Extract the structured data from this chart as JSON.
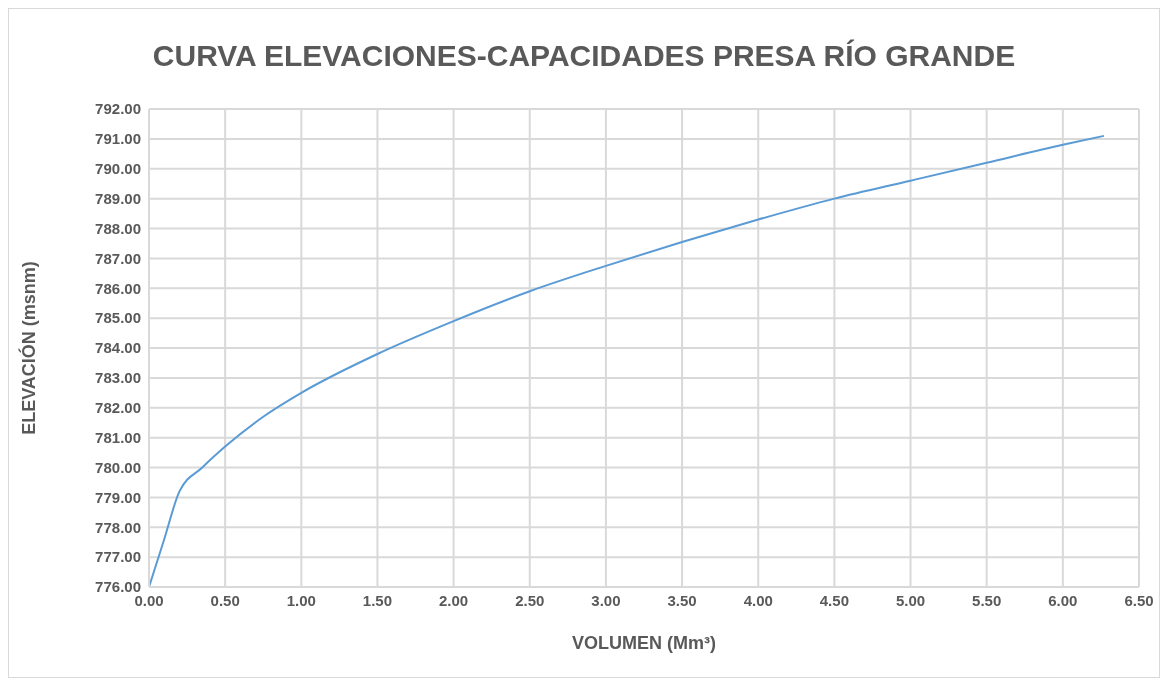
{
  "chart_data": {
    "type": "line",
    "title": "CURVA ELEVACIONES-CAPACIDADES PRESA RÍO GRANDE",
    "xlabel": "VOLUMEN (Mm³)",
    "ylabel": "ELEVACIÓN (msnm)",
    "series": [
      {
        "color": "#5b9bd5",
        "x": [
          0,
          0.1,
          0.2,
          0.35,
          0.5,
          0.75,
          1.0,
          1.5,
          2.0,
          2.5,
          3.0,
          3.5,
          4.0,
          4.5,
          5.0,
          5.5,
          6.0,
          6.27
        ],
        "values": [
          776,
          777.6,
          779.2,
          780.0,
          780.7,
          781.7,
          782.5,
          783.8,
          784.9,
          785.9,
          786.75,
          787.55,
          788.3,
          789.0,
          789.6,
          790.2,
          790.8,
          791.1
        ]
      }
    ],
    "xlim": [
      0,
      6.5
    ],
    "xticks": [
      {
        "value": 0,
        "label": "0.00"
      },
      {
        "value": 0.5,
        "label": "0.50"
      },
      {
        "value": 1,
        "label": "1.00"
      },
      {
        "value": 1.5,
        "label": "1.50"
      },
      {
        "value": 2,
        "label": "2.00"
      },
      {
        "value": 2.5,
        "label": "2.50"
      },
      {
        "value": 3,
        "label": "3.00"
      },
      {
        "value": 3.5,
        "label": "3.50"
      },
      {
        "value": 4,
        "label": "4.00"
      },
      {
        "value": 4.5,
        "label": "4.50"
      },
      {
        "value": 5,
        "label": "5.00"
      },
      {
        "value": 5.5,
        "label": "5.50"
      },
      {
        "value": 6,
        "label": "6.00"
      },
      {
        "value": 6.5,
        "label": "6.50"
      }
    ],
    "ylim": [
      776,
      792
    ],
    "yticks": [
      {
        "value": 776,
        "label": "776.00"
      },
      {
        "value": 777,
        "label": "777.00"
      },
      {
        "value": 778,
        "label": "778.00"
      },
      {
        "value": 779,
        "label": "779.00"
      },
      {
        "value": 780,
        "label": "780.00"
      },
      {
        "value": 781,
        "label": "781.00"
      },
      {
        "value": 782,
        "label": "782.00"
      },
      {
        "value": 783,
        "label": "783.00"
      },
      {
        "value": 784,
        "label": "784.00"
      },
      {
        "value": 785,
        "label": "785.00"
      },
      {
        "value": 786,
        "label": "786.00"
      },
      {
        "value": 787,
        "label": "787.00"
      },
      {
        "value": 788,
        "label": "788.00"
      },
      {
        "value": 789,
        "label": "789.00"
      },
      {
        "value": 790,
        "label": "790.00"
      },
      {
        "value": 791,
        "label": "791.00"
      },
      {
        "value": 792,
        "label": "792.00"
      }
    ],
    "grid": true,
    "marker": "none",
    "line_style": "solid"
  }
}
